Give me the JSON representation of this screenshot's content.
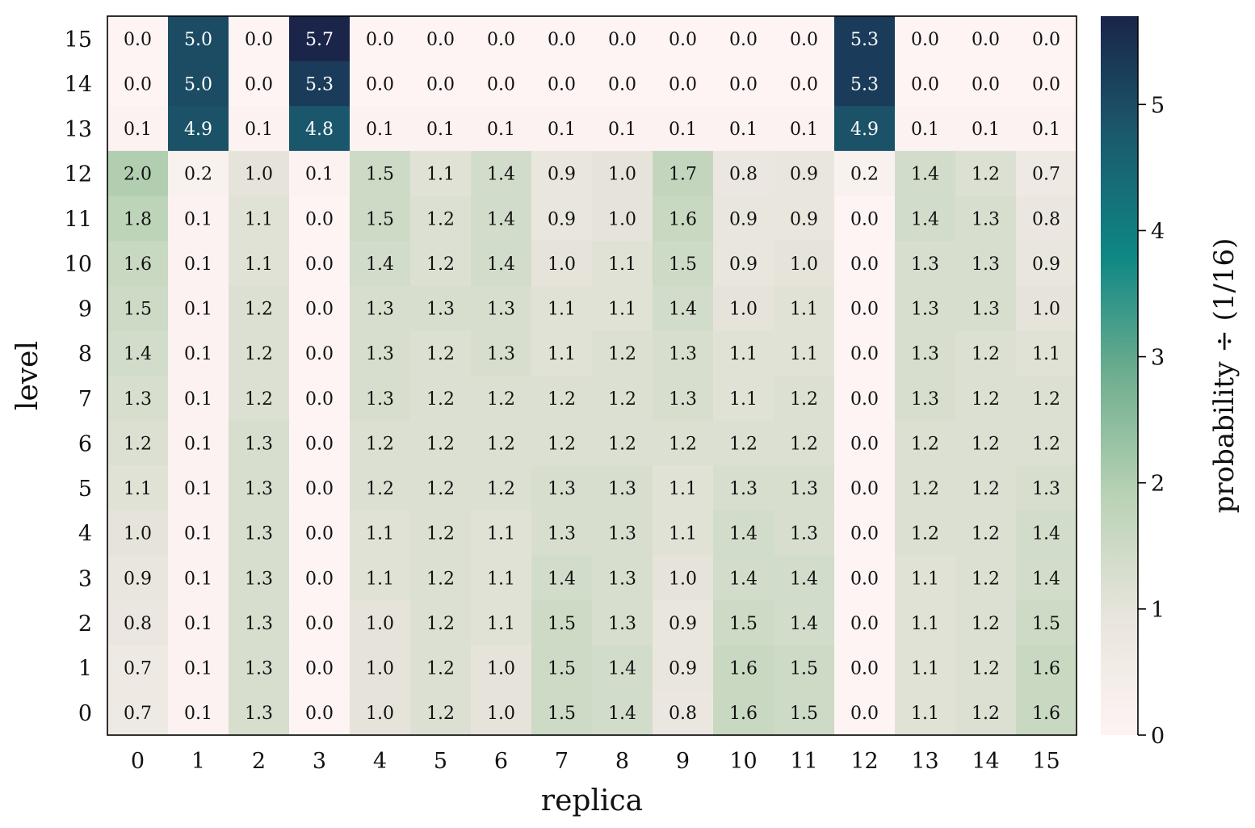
{
  "chart_data": {
    "type": "heatmap",
    "xlabel": "replica",
    "ylabel": "level",
    "colorbar_label": "probability ÷ (1/16)",
    "x_ticks": [
      "0",
      "1",
      "2",
      "3",
      "4",
      "5",
      "6",
      "7",
      "8",
      "9",
      "10",
      "11",
      "12",
      "13",
      "14",
      "15"
    ],
    "y_ticks": [
      "0",
      "1",
      "2",
      "3",
      "4",
      "5",
      "6",
      "7",
      "8",
      "9",
      "10",
      "11",
      "12",
      "13",
      "14",
      "15"
    ],
    "colorbar_ticks": [
      "0",
      "1",
      "2",
      "3",
      "4",
      "5"
    ],
    "colorbar_range": [
      0,
      5.7
    ],
    "colormap": [
      "#fdf4f3",
      "#e8e5dc",
      "#b9d2b5",
      "#6fae8f",
      "#0e8784",
      "#1b5a6e",
      "#1a2549"
    ],
    "grid": false,
    "values_by_level": {
      "15": [
        0.0,
        5.0,
        0.0,
        5.7,
        0.0,
        0.0,
        0.0,
        0.0,
        0.0,
        0.0,
        0.0,
        0.0,
        5.3,
        0.0,
        0.0,
        0.0
      ],
      "14": [
        0.0,
        5.0,
        0.0,
        5.3,
        0.0,
        0.0,
        0.0,
        0.0,
        0.0,
        0.0,
        0.0,
        0.0,
        5.3,
        0.0,
        0.0,
        0.0
      ],
      "13": [
        0.1,
        4.9,
        0.1,
        4.8,
        0.1,
        0.1,
        0.1,
        0.1,
        0.1,
        0.1,
        0.1,
        0.1,
        4.9,
        0.1,
        0.1,
        0.1
      ],
      "12": [
        2.0,
        0.2,
        1.0,
        0.1,
        1.5,
        1.1,
        1.4,
        0.9,
        1.0,
        1.7,
        0.8,
        0.9,
        0.2,
        1.4,
        1.2,
        0.7
      ],
      "11": [
        1.8,
        0.1,
        1.1,
        0.0,
        1.5,
        1.2,
        1.4,
        0.9,
        1.0,
        1.6,
        0.9,
        0.9,
        0.0,
        1.4,
        1.3,
        0.8
      ],
      "10": [
        1.6,
        0.1,
        1.1,
        0.0,
        1.4,
        1.2,
        1.4,
        1.0,
        1.1,
        1.5,
        0.9,
        1.0,
        0.0,
        1.3,
        1.3,
        0.9
      ],
      "9": [
        1.5,
        0.1,
        1.2,
        0.0,
        1.3,
        1.3,
        1.3,
        1.1,
        1.1,
        1.4,
        1.0,
        1.1,
        0.0,
        1.3,
        1.3,
        1.0
      ],
      "8": [
        1.4,
        0.1,
        1.2,
        0.0,
        1.3,
        1.2,
        1.3,
        1.1,
        1.2,
        1.3,
        1.1,
        1.1,
        0.0,
        1.3,
        1.2,
        1.1
      ],
      "7": [
        1.3,
        0.1,
        1.2,
        0.0,
        1.3,
        1.2,
        1.2,
        1.2,
        1.2,
        1.3,
        1.1,
        1.2,
        0.0,
        1.3,
        1.2,
        1.2
      ],
      "6": [
        1.2,
        0.1,
        1.3,
        0.0,
        1.2,
        1.2,
        1.2,
        1.2,
        1.2,
        1.2,
        1.2,
        1.2,
        0.0,
        1.2,
        1.2,
        1.2
      ],
      "5": [
        1.1,
        0.1,
        1.3,
        0.0,
        1.2,
        1.2,
        1.2,
        1.3,
        1.3,
        1.1,
        1.3,
        1.3,
        0.0,
        1.2,
        1.2,
        1.3
      ],
      "4": [
        1.0,
        0.1,
        1.3,
        0.0,
        1.1,
        1.2,
        1.1,
        1.3,
        1.3,
        1.1,
        1.4,
        1.3,
        0.0,
        1.2,
        1.2,
        1.4
      ],
      "3": [
        0.9,
        0.1,
        1.3,
        0.0,
        1.1,
        1.2,
        1.1,
        1.4,
        1.3,
        1.0,
        1.4,
        1.4,
        0.0,
        1.1,
        1.2,
        1.4
      ],
      "2": [
        0.8,
        0.1,
        1.3,
        0.0,
        1.0,
        1.2,
        1.1,
        1.5,
        1.3,
        0.9,
        1.5,
        1.4,
        0.0,
        1.1,
        1.2,
        1.5
      ],
      "1": [
        0.7,
        0.1,
        1.3,
        0.0,
        1.0,
        1.2,
        1.0,
        1.5,
        1.4,
        0.9,
        1.6,
        1.5,
        0.0,
        1.1,
        1.2,
        1.6
      ],
      "0": [
        0.7,
        0.1,
        1.3,
        0.0,
        1.0,
        1.2,
        1.0,
        1.5,
        1.4,
        0.8,
        1.6,
        1.5,
        0.0,
        1.1,
        1.2,
        1.6
      ]
    }
  }
}
